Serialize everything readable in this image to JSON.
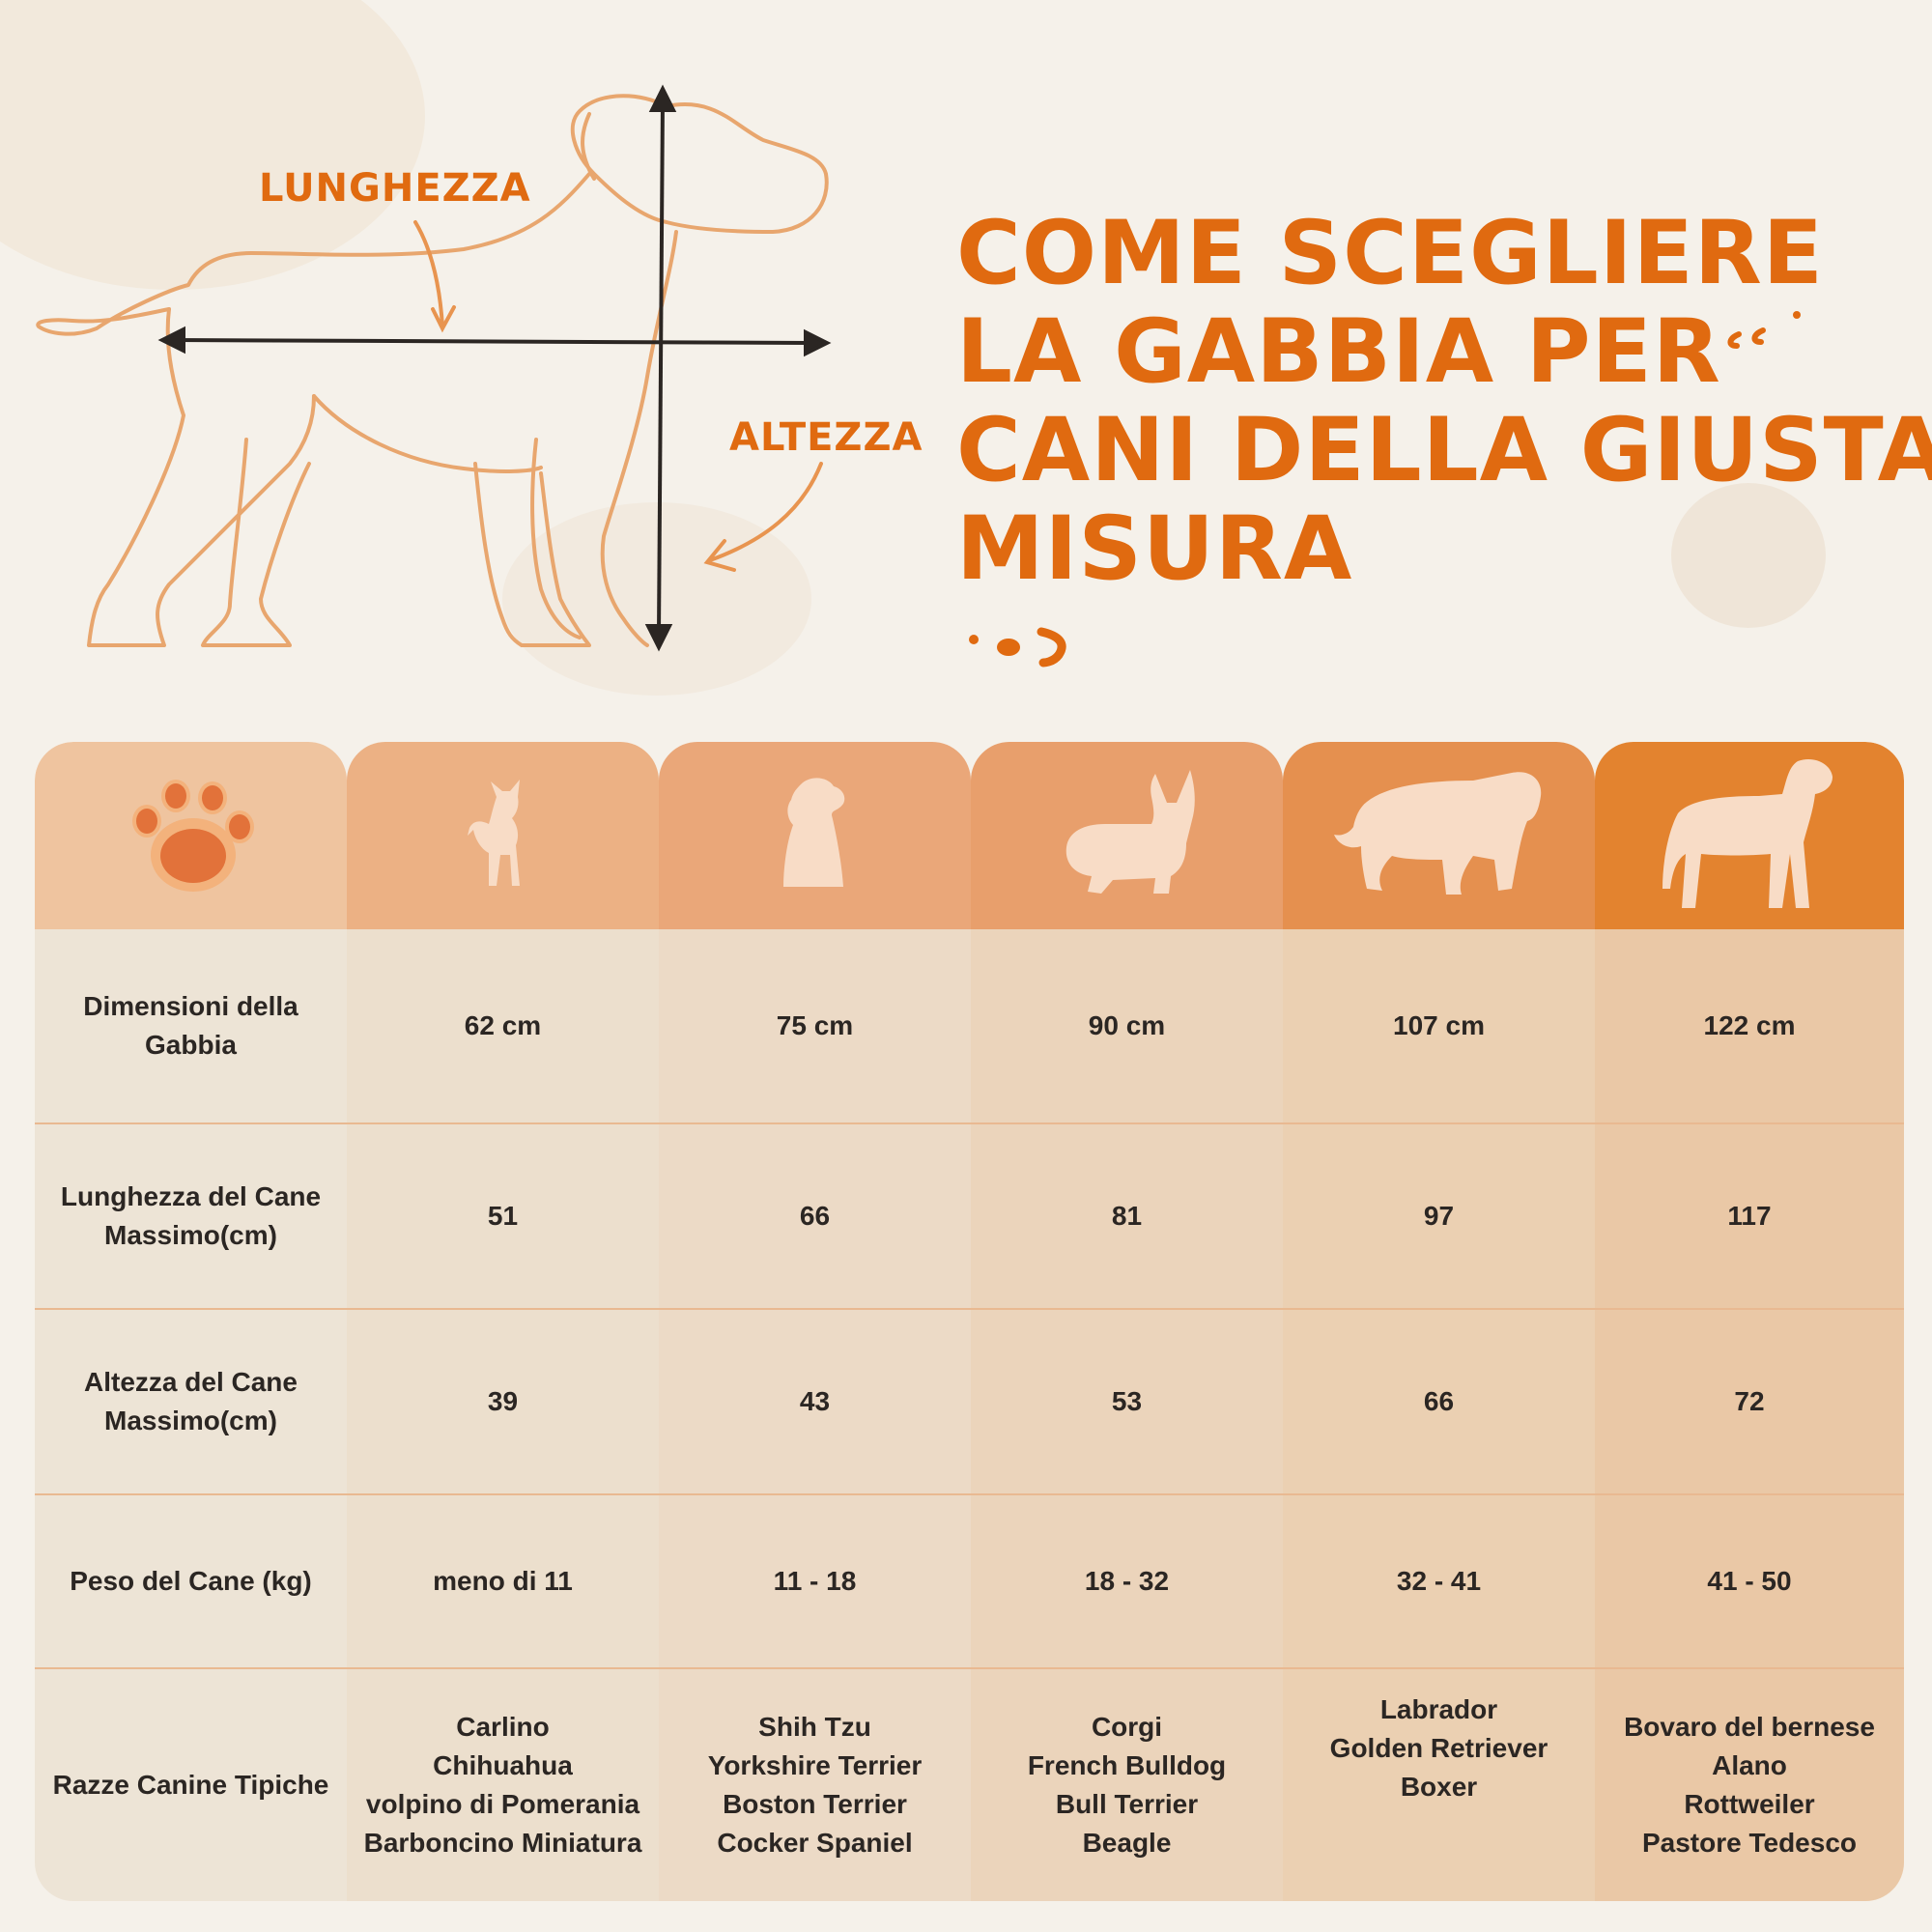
{
  "diagram": {
    "length_label": "LUNGHEZZA",
    "height_label": "ALTEZZA"
  },
  "headline": {
    "lines": [
      "COME SCEGLIERE",
      "LA GABBIA PER",
      "CANI DELLA GIUSTA",
      "MISURA"
    ]
  },
  "table": {
    "header_icons": [
      "paw-icon",
      "chihuahua-silhouette-icon",
      "shih-tzu-silhouette-icon",
      "corgi-silhouette-icon",
      "st-bernard-silhouette-icon",
      "large-dog-silhouette-icon"
    ],
    "rows": [
      {
        "label": "Dimensioni della Gabbia",
        "values": [
          "62 cm",
          "75 cm",
          "90 cm",
          "107 cm",
          "122 cm"
        ]
      },
      {
        "label": "Lunghezza del Cane Massimo(cm)",
        "values": [
          "51",
          "66",
          "81",
          "97",
          "117"
        ]
      },
      {
        "label": "Altezza del Cane Massimo(cm)",
        "values": [
          "39",
          "43",
          "53",
          "66",
          "72"
        ]
      },
      {
        "label": "Peso del Cane (kg)",
        "values": [
          "meno di 11",
          "11 - 18",
          "18 - 32",
          "32 - 41",
          "41 - 50"
        ]
      }
    ],
    "breeds_row": {
      "label": "Razze Canine Tipiche",
      "values": [
        [
          "Carlino",
          "Chihuahua",
          "volpino di Pomerania",
          "Barboncino Miniatura"
        ],
        [
          "Shih Tzu",
          "Yorkshire Terrier",
          "Boston Terrier",
          "Cocker Spaniel"
        ],
        [
          "Corgi",
          "French Bulldog",
          "Bull Terrier",
          "Beagle"
        ],
        [
          "Labrador",
          "Golden Retriever",
          "Boxer"
        ],
        [
          "Bovaro del bernese",
          "Alano",
          "Rottweiler",
          "Pastore Tedesco"
        ]
      ]
    }
  },
  "colors": {
    "accent": "#e06a10",
    "background": "#f5f1ea",
    "outline": "#e8a66e",
    "text": "#2b2623"
  }
}
